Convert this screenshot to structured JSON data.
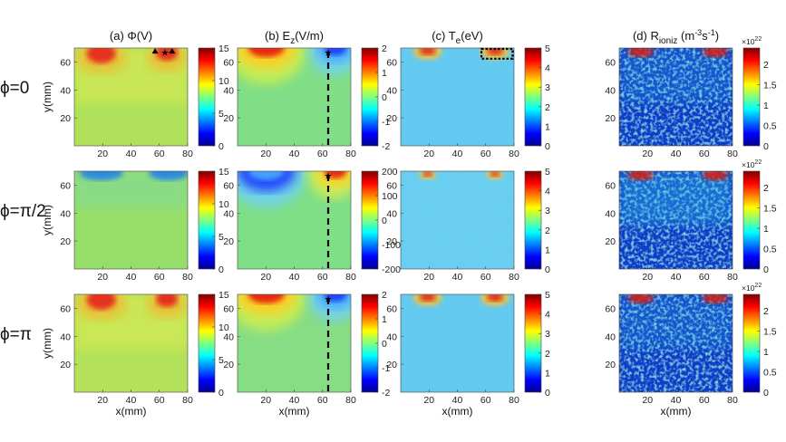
{
  "chart_data": {
    "type": "heatmap",
    "columns": [
      {
        "id": "a",
        "prefix": "(a) ",
        "main": "Φ(V)",
        "sub": "",
        "sup": "",
        "tail": "",
        "colorbar": {
          "label": "Φ (V)",
          "phases": [
            {
              "ticks": [
                0,
                5,
                10,
                15
              ],
              "range": [
                0,
                15
              ]
            },
            {
              "ticks": [
                0,
                5,
                10,
                15
              ],
              "range": [
                0,
                15
              ]
            },
            {
              "ticks": [
                0,
                5,
                10,
                15
              ],
              "range": [
                0,
                15
              ]
            }
          ]
        }
      },
      {
        "id": "b",
        "prefix": "(b) E",
        "main": "",
        "sub": "z",
        "sup": "",
        "tail": "(V/m)",
        "colorbar": {
          "label": "E_z (V/m)",
          "phases": [
            {
              "ticks": [
                -2,
                -1,
                0,
                1,
                2
              ],
              "range": [
                -2,
                2
              ]
            },
            {
              "ticks": [
                -200,
                -100,
                0,
                100,
                200
              ],
              "range": [
                -200,
                200
              ]
            },
            {
              "ticks": [
                -2,
                -1,
                0,
                1,
                2
              ],
              "range": [
                -2,
                2
              ]
            }
          ]
        }
      },
      {
        "id": "c",
        "prefix": "(c) T",
        "main": "",
        "sub": "e",
        "sup": "",
        "tail": "(eV)",
        "colorbar": {
          "label": "T_e (eV)",
          "phases": [
            {
              "ticks": [
                0,
                1,
                2,
                3,
                4,
                5
              ],
              "range": [
                0,
                5
              ]
            },
            {
              "ticks": [
                0,
                1,
                2,
                3,
                4,
                5
              ],
              "range": [
                0,
                5
              ]
            },
            {
              "ticks": [
                0,
                1,
                2,
                3,
                4,
                5
              ],
              "range": [
                0,
                5
              ]
            }
          ]
        }
      },
      {
        "id": "d",
        "prefix": "(d) R",
        "main": "",
        "sub": "ioniz",
        "sup": "",
        "tail": " (m",
        "sup2": "-3",
        "mid": "s",
        "sup3": "-1",
        "end": ")",
        "colorbar": {
          "label": "R_ioniz (m^-3 s^-1)",
          "scale_base": "×10",
          "scale_exp": "22",
          "phases": [
            {
              "ticks": [
                0,
                0.5,
                1,
                1.5,
                2
              ],
              "range": [
                0,
                2.4
              ]
            },
            {
              "ticks": [
                0,
                0.5,
                1,
                1.5,
                2
              ],
              "range": [
                0,
                2.4
              ]
            },
            {
              "ticks": [
                0,
                0.5,
                1,
                1.5,
                2
              ],
              "range": [
                0,
                2.4
              ]
            }
          ]
        }
      }
    ],
    "rows": [
      {
        "label": "ϕ=0"
      },
      {
        "label": "ϕ=π/2"
      },
      {
        "label": "ϕ=π"
      }
    ],
    "xlabel": "x(mm)",
    "ylabel": "y(mm)",
    "x_ticks": [
      20,
      40,
      60,
      80
    ],
    "y_ticks": [
      20,
      40,
      60
    ],
    "x_range": [
      0,
      80
    ],
    "y_range": [
      0,
      70
    ],
    "annotations": {
      "dashed_line_x_mm": 64,
      "star_markers": [
        {
          "x": 64,
          "y": 67
        }
      ],
      "triangle_markers": [
        {
          "x": 57,
          "y": 68
        },
        {
          "x": 69,
          "y": 68
        }
      ],
      "dotted_box_mm": {
        "x0": 57,
        "x1": 79,
        "y0": 63,
        "y1": 70
      }
    },
    "colormap": "jet"
  }
}
